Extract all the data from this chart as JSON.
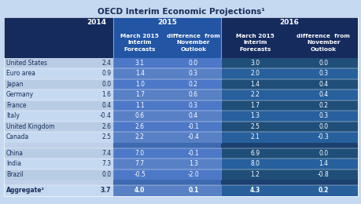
{
  "title": "OECD Interim Economic Projections¹",
  "rows": [
    [
      "United States",
      "2.4",
      "3.1",
      "0.0",
      "3.0",
      "0.0"
    ],
    [
      "Euro area",
      "0.9",
      "1.4",
      "0.3",
      "2.0",
      "0.3"
    ],
    [
      "Japan",
      "0.0",
      "1.0",
      "0.2",
      "1.4",
      "0.4"
    ],
    [
      "Germany",
      "1.6",
      "1.7",
      "0.6",
      "2.2",
      "0.4"
    ],
    [
      "France",
      "0.4",
      "1.1",
      "0.3",
      "1.7",
      "0.2"
    ],
    [
      "Italy",
      "-0.4",
      "0.6",
      "0.4",
      "1.3",
      "0.3"
    ],
    [
      "United Kingdom",
      "2.6",
      "2.6",
      "-0.1",
      "2.5",
      "0.0"
    ],
    [
      "Canada",
      "2.5",
      "2.2",
      "-0.4",
      "2.1",
      "-0.3"
    ],
    null,
    [
      "China",
      "7.4",
      "7.0",
      "-0.1",
      "6.9",
      "0.0"
    ],
    [
      "India",
      "7.3",
      "7.7",
      "1.3",
      "8.0",
      "1.4"
    ],
    [
      "Brazil",
      "0.0",
      "-0.5",
      "-2.0",
      "1.2",
      "-0.8"
    ],
    null,
    [
      "Aggregate²",
      "3.7",
      "4.0",
      "0.1",
      "4.3",
      "0.2"
    ]
  ],
  "header_bg": "#152b5e",
  "header_mid": "#2255a4",
  "row_label_light": "#b8cce4",
  "row_label_dark": "#9ab5d5",
  "row_data_light1": "#4472c4",
  "row_data_light2": "#5b86cf",
  "row_data_dark1": "#1f4e79",
  "row_data_dark2": "#2e60a0",
  "spacer_color": "#a0b8d4",
  "text_white": "#ffffff",
  "text_dark": "#1a2e5a",
  "bg_color": "#c5d9f1",
  "sep_line": "#7f9fcc"
}
